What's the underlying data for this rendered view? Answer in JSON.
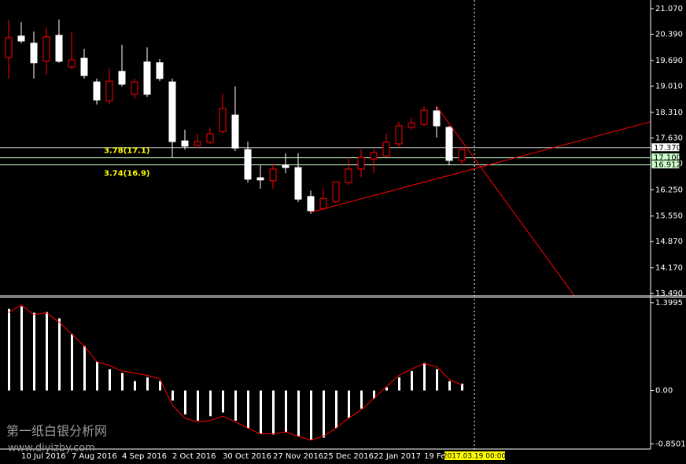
{
  "chart_data": [
    {
      "type": "candlestick",
      "categories": [
        null,
        "10 Jul 2016",
        null,
        null,
        null,
        "7 Aug 2016",
        null,
        null,
        null,
        "4 Sep 2016",
        null,
        null,
        null,
        "2 Oct 2016",
        null,
        null,
        null,
        "30 Oct 2016",
        null,
        null,
        null,
        "27 Nov 2016",
        null,
        null,
        null,
        "25 Dec 2016",
        null,
        null,
        null,
        "22 Jan 2017",
        null,
        null,
        null,
        "19 Feb",
        null,
        null,
        null
      ],
      "open": [
        19.77,
        20.34,
        20.15,
        19.67,
        20.36,
        19.52,
        19.75,
        19.12,
        18.62,
        19.4,
        18.79,
        19.65,
        19.63,
        19.12,
        17.55,
        17.43,
        17.51,
        17.8,
        18.24,
        17.32,
        16.57,
        16.49,
        16.9,
        16.84,
        16.07,
        15.75,
        15.94,
        16.44,
        16.8,
        17.07,
        17.15,
        17.47,
        17.91,
        17.99,
        18.35,
        17.91,
        17.03
      ],
      "high": [
        20.78,
        20.71,
        20.46,
        20.57,
        20.78,
        20.46,
        20.0,
        19.21,
        19.48,
        20.11,
        19.21,
        20.04,
        19.73,
        19.21,
        17.85,
        17.74,
        17.91,
        18.79,
        19.0,
        17.53,
        16.9,
        16.95,
        17.22,
        17.22,
        16.23,
        16.28,
        16.46,
        17.11,
        17.32,
        17.32,
        17.74,
        18.06,
        18.16,
        18.47,
        18.47,
        17.95,
        17.41
      ],
      "low": [
        19.21,
        20.15,
        19.21,
        19.31,
        19.63,
        19.46,
        19.21,
        18.52,
        18.52,
        19.0,
        18.68,
        18.72,
        19.14,
        17.11,
        17.32,
        17.36,
        17.47,
        17.74,
        17.28,
        16.44,
        16.28,
        16.28,
        16.69,
        15.92,
        15.61,
        15.69,
        15.9,
        16.38,
        16.59,
        16.69,
        17.11,
        17.39,
        17.85,
        17.95,
        17.64,
        16.9,
        16.9
      ],
      "close": [
        20.3,
        20.21,
        19.63,
        20.32,
        19.67,
        19.71,
        19.29,
        18.64,
        19.14,
        19.06,
        19.12,
        18.79,
        19.21,
        17.53,
        17.41,
        17.53,
        17.74,
        18.41,
        17.36,
        16.53,
        16.51,
        16.8,
        16.84,
        16.0,
        15.69,
        16.02,
        16.46,
        16.8,
        17.11,
        17.24,
        17.51,
        17.95,
        18.03,
        18.37,
        17.95,
        17.03,
        17.32
      ],
      "up_color": "#ff0000",
      "down_color": "#ffffff",
      "ylim": [
        13.43,
        21.3
      ],
      "yticks": [
        {
          "value": 21.07,
          "label": "21.070"
        },
        {
          "value": 20.39,
          "label": "20.390"
        },
        {
          "value": 19.69,
          "label": "19.690"
        },
        {
          "value": 19.01,
          "label": "19.010"
        },
        {
          "value": 18.31,
          "label": "18.310"
        },
        {
          "value": 17.63,
          "label": "17.630"
        },
        {
          "value": 16.95,
          "label": "16.950"
        },
        {
          "value": 16.25,
          "label": "16.250"
        },
        {
          "value": 15.55,
          "label": "15.550"
        },
        {
          "value": 14.87,
          "label": "14.870"
        },
        {
          "value": 14.17,
          "label": "14.170"
        },
        {
          "value": 13.49,
          "label": "13.490"
        }
      ],
      "levels": [
        {
          "value": 17.37,
          "label": "17.370",
          "color": "#c0c0c0"
        },
        {
          "value": 17.1,
          "label": "17.100",
          "note": "3.78(17.1)",
          "color": "#ccffcc"
        },
        {
          "value": 16.912,
          "label": "16.912",
          "note": "3.74(16.9)",
          "color": "#ccffcc"
        }
      ],
      "trendlines": [
        {
          "x": [
            24,
            53.8
          ],
          "y": [
            15.65,
            18.31
          ],
          "color": "#ff0000"
        },
        {
          "x": [
            34,
            44.94
          ],
          "y": [
            18.47,
            13.43
          ],
          "color": "#ff0000"
        }
      ],
      "cursor": {
        "x": 37,
        "label": "2017.03.19 00:00"
      }
    },
    {
      "type": "bar",
      "values": [
        1.3,
        1.34,
        1.24,
        1.25,
        1.15,
        0.9,
        0.71,
        0.46,
        0.34,
        0.28,
        0.15,
        0.21,
        0.15,
        -0.16,
        -0.38,
        -0.48,
        -0.41,
        -0.35,
        -0.48,
        -0.6,
        -0.69,
        -0.7,
        -0.66,
        -0.73,
        -0.79,
        -0.75,
        -0.6,
        -0.44,
        -0.29,
        -0.13,
        0.05,
        0.21,
        0.31,
        0.44,
        0.34,
        0.15,
        0.11
      ],
      "color": "#ffffff",
      "signal": {
        "values": [
          1.24,
          1.36,
          1.21,
          1.24,
          1.09,
          0.9,
          0.71,
          0.46,
          0.4,
          0.31,
          0.28,
          0.24,
          0.19,
          -0.23,
          -0.44,
          -0.5,
          -0.48,
          -0.41,
          -0.5,
          -0.6,
          -0.69,
          -0.69,
          -0.66,
          -0.73,
          -0.79,
          -0.73,
          -0.6,
          -0.44,
          -0.31,
          -0.13,
          0.06,
          0.24,
          0.34,
          0.43,
          0.38,
          0.18,
          0.09
        ],
        "color": "#ff0000"
      },
      "ylim": [
        -0.92,
        1.46
      ],
      "yticks": [
        1.3995,
        {
          "value": 0,
          "label": "0.00"
        },
        -0.8501
      ]
    }
  ],
  "watermark": {
    "title": "第一纸白银分析网",
    "url": "www.diyizby.com"
  }
}
